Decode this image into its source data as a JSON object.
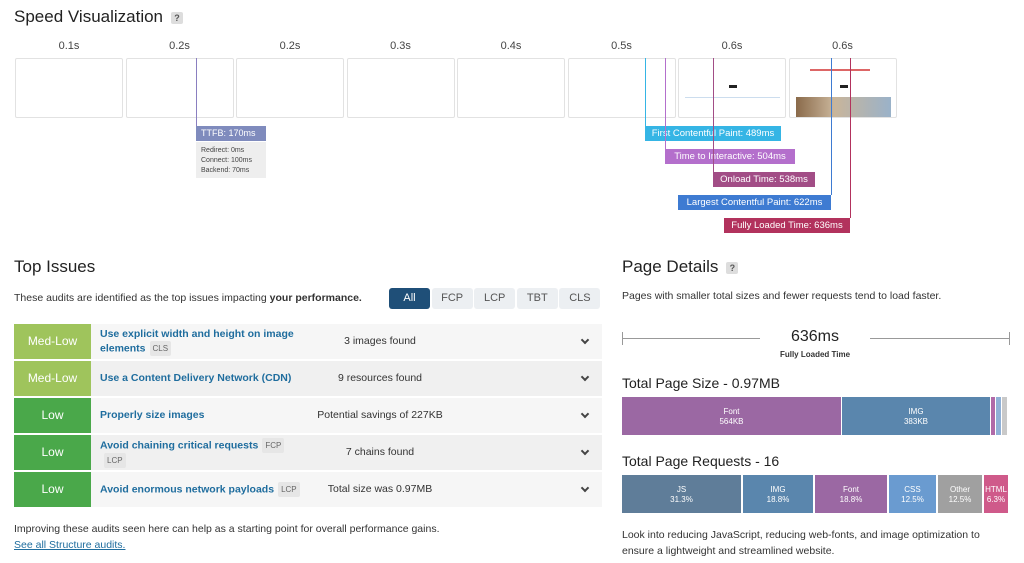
{
  "speed_visualization": {
    "title": "Speed Visualization",
    "help": "?",
    "frames": [
      "0.1s",
      "0.2s",
      "0.2s",
      "0.3s",
      "0.4s",
      "0.5s",
      "0.6s",
      "0.6s"
    ],
    "ttfb": {
      "label": "TTFB: 170ms",
      "details": [
        "Redirect: 0ms",
        "Connect: 100ms",
        "Backend: 70ms"
      ]
    },
    "markers": [
      "First Contentful Paint: 489ms",
      "Time to Interactive: 504ms",
      "Onload Time: 538ms",
      "Largest Contentful Paint: 622ms",
      "Fully Loaded Time: 636ms"
    ]
  },
  "top_issues": {
    "title": "Top Issues",
    "description": "These audits are identified as the top issues impacting ",
    "description_bold": "your performance.",
    "filters": [
      "All",
      "FCP",
      "LCP",
      "TBT",
      "CLS"
    ],
    "rows": [
      {
        "severity": "Med-Low",
        "title": "Use explicit width and height on image elements",
        "tags": [
          "CLS"
        ],
        "detail": "3 images found"
      },
      {
        "severity": "Med-Low",
        "title": "Use a Content Delivery Network (CDN)",
        "tags": [],
        "detail": "9 resources found"
      },
      {
        "severity": "Low",
        "title": "Properly size images",
        "tags": [],
        "detail": "Potential savings of 227KB"
      },
      {
        "severity": "Low",
        "title": "Avoid chaining critical requests",
        "tags": [
          "FCP",
          "LCP"
        ],
        "detail": "7 chains found"
      },
      {
        "severity": "Low",
        "title": "Avoid enormous network payloads",
        "tags": [
          "LCP"
        ],
        "detail": "Total size was 0.97MB"
      }
    ],
    "footer": "Improving these audits seen here can help as a starting point for overall performance gains.",
    "link": "See all Structure audits."
  },
  "page_details": {
    "title": "Page Details",
    "help": "?",
    "description": "Pages with smaller total sizes and fewer requests tend to load faster.",
    "fully_loaded": {
      "value": "636ms",
      "label": "Fully Loaded Time"
    },
    "size": {
      "title": "Total Page Size - 0.97MB",
      "segments": [
        {
          "name": "Font",
          "value": "564KB"
        },
        {
          "name": "IMG",
          "value": "383KB"
        }
      ]
    },
    "requests": {
      "title": "Total Page Requests - 16",
      "segments": [
        {
          "name": "JS",
          "value": "31.3%"
        },
        {
          "name": "IMG",
          "value": "18.8%"
        },
        {
          "name": "Font",
          "value": "18.8%"
        },
        {
          "name": "CSS",
          "value": "12.5%"
        },
        {
          "name": "Other",
          "value": "12.5%"
        },
        {
          "name": "HTML",
          "value": "6.3%"
        }
      ]
    },
    "footer": "Look into reducing JavaScript, reducing web-fonts, and image optimization to ensure a lightweight and streamlined website."
  }
}
